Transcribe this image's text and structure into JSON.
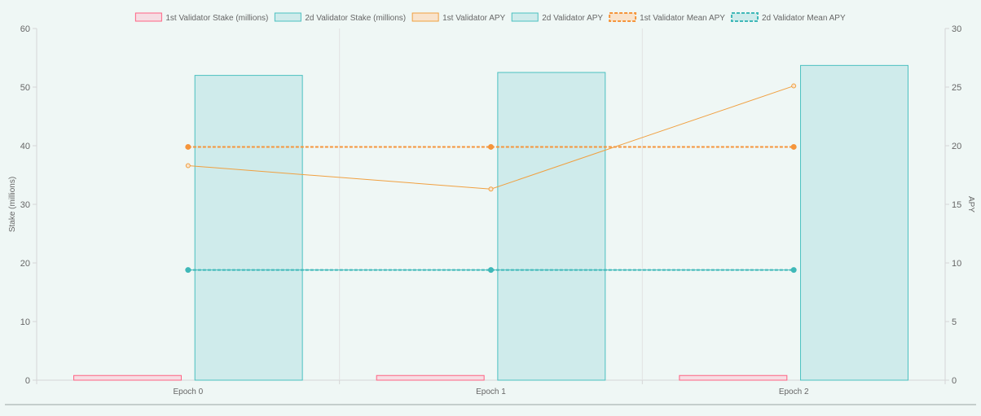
{
  "chart_data": {
    "type": "bar",
    "categories": [
      "Epoch 0",
      "Epoch 1",
      "Epoch 2"
    ],
    "y_left": {
      "label": "Stake (millions)",
      "range": [
        0,
        60
      ],
      "ticks": [
        0,
        10,
        20,
        30,
        40,
        50,
        60
      ]
    },
    "y_right": {
      "label": "APY",
      "range": [
        0,
        30
      ],
      "ticks": [
        0,
        5,
        10,
        15,
        20,
        25,
        30
      ]
    },
    "grid": "vertical",
    "legend_position": "top-center",
    "series": [
      {
        "name": "1st Validator Stake (millions)",
        "type": "bar",
        "axis": "left",
        "values": [
          0.8,
          0.8,
          0.8
        ],
        "color": "#ff6384",
        "fill": "#f6dde3"
      },
      {
        "name": "2d Validator Stake (millions)",
        "type": "bar",
        "axis": "left",
        "values": [
          52.0,
          52.5,
          53.7
        ],
        "color": "#4bc0c0",
        "fill": "#cfebeb"
      },
      {
        "name": "1st Validator APY",
        "type": "line",
        "axis": "right",
        "values": [
          18.3,
          16.3,
          25.1
        ],
        "color": "#f0a040",
        "fill": "#f9e3cc",
        "dashed": false
      },
      {
        "name": "2d Validator APY",
        "type": "line",
        "axis": "right",
        "values": [
          9.4,
          9.4,
          9.4
        ],
        "color": "#4bc0c0",
        "fill": "#cfebeb",
        "dashed": false
      },
      {
        "name": "1st Validator Mean APY",
        "type": "line",
        "axis": "right",
        "values": [
          19.9,
          19.9,
          19.9
        ],
        "color": "#f5953b",
        "fill": "#f9e3cc",
        "dashed": true
      },
      {
        "name": "2d Validator Mean APY",
        "type": "line",
        "axis": "right",
        "values": [
          9.4,
          9.4,
          9.4
        ],
        "color": "#3fb8b8",
        "fill": "#cfebeb",
        "dashed": true
      }
    ]
  }
}
